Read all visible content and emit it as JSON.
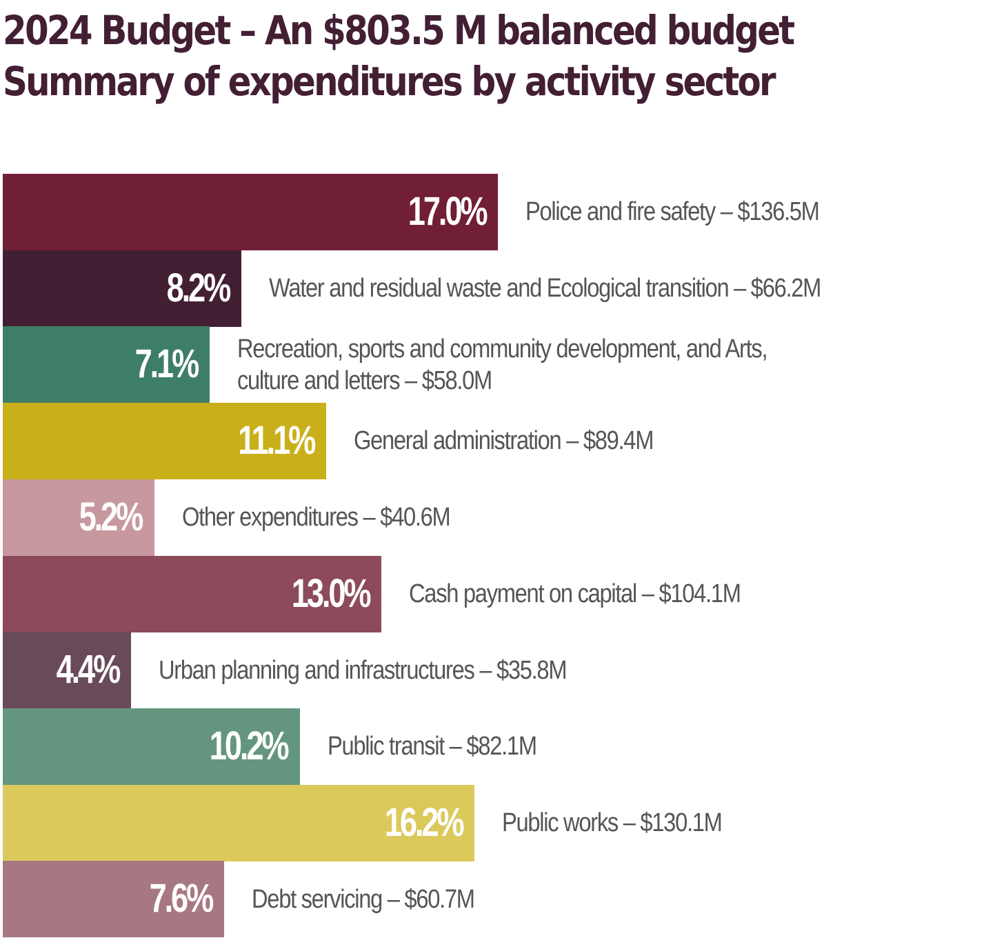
{
  "title": {
    "line1": "2024 Budget – An $803.5 M balanced budget",
    "line2": "Summary of expenditures by activity sector"
  },
  "chart_data": {
    "type": "bar",
    "orientation": "horizontal",
    "title": "2024 Budget – An $803.5 M balanced budget / Summary of expenditures by activity sector",
    "unit": "% of total budget",
    "total": "$803.5 M",
    "grid": false,
    "legend": "none",
    "categories": [
      "Police and fire safety",
      "Water and residual waste and Ecological transition",
      "Recreation, sports and community development, and Arts, culture and letters",
      "General administration",
      "Other expenditures",
      "Cash payment on capital",
      "Urban planning and infrastructures",
      "Public transit",
      "Public works",
      "Debt servicing"
    ],
    "values": [
      17.0,
      8.2,
      7.1,
      11.1,
      5.2,
      13.0,
      4.4,
      10.2,
      16.2,
      7.6
    ],
    "bars": [
      {
        "percent": 17.0,
        "percent_label": "17.0%",
        "label_lines": [
          "Police and fire safety – $136.5M"
        ],
        "amount": "$136.5M",
        "color": "#711F35"
      },
      {
        "percent": 8.2,
        "percent_label": "8.2%",
        "label_lines": [
          "Water and residual waste and Ecological transition – $66.2M"
        ],
        "amount": "$66.2M",
        "color": "#431F33"
      },
      {
        "percent": 7.1,
        "percent_label": "7.1%",
        "label_lines": [
          "Recreation, sports and community development, and Arts,",
          "culture and letters – $58.0M"
        ],
        "amount": "$58.0M",
        "color": "#3F7E66"
      },
      {
        "percent": 11.1,
        "percent_label": "11.1%",
        "label_lines": [
          "General administration – $89.4M"
        ],
        "amount": "$89.4M",
        "color": "#C9B01A"
      },
      {
        "percent": 5.2,
        "percent_label": "5.2%",
        "label_lines": [
          "Other expenditures – $40.6M"
        ],
        "amount": "$40.6M",
        "color": "#C8989F"
      },
      {
        "percent": 13.0,
        "percent_label": "13.0%",
        "label_lines": [
          "Cash payment on capital – $104.1M"
        ],
        "amount": "$104.1M",
        "color": "#8C4A5B"
      },
      {
        "percent": 4.4,
        "percent_label": "4.4%",
        "label_lines": [
          "Urban planning and infrastructures – $35.8M"
        ],
        "amount": "$35.8M",
        "color": "#684A5A"
      },
      {
        "percent": 10.2,
        "percent_label": "10.2%",
        "label_lines": [
          "Public transit – $82.1M"
        ],
        "amount": "$82.1M",
        "color": "#64967F"
      },
      {
        "percent": 16.2,
        "percent_label": "16.2%",
        "label_lines": [
          "Public works – $130.1M"
        ],
        "amount": "$130.1M",
        "color": "#DBC95C"
      },
      {
        "percent": 7.6,
        "percent_label": "7.6%",
        "label_lines": [
          "Debt servicing – $60.7M"
        ],
        "amount": "$60.7M",
        "color": "#A77782"
      }
    ],
    "xlim": [
      0,
      17.0
    ]
  }
}
